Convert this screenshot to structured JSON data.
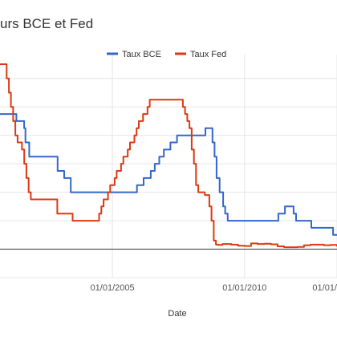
{
  "chart_data": {
    "type": "line",
    "title": "urs BCE et Fed",
    "xlabel": "Date",
    "ylabel": "",
    "x_ticks": [
      "01/01/2005",
      "01/01/2010",
      "01/01/"
    ],
    "xlim": [
      "2000-10-01",
      "2013-07-01"
    ],
    "ylim": [
      -1.0,
      6.5
    ],
    "grid": true,
    "legend_position": "top-right",
    "series": [
      {
        "name": "Taux BCE",
        "color": "#3366cc",
        "points": [
          [
            "2000-10-01",
            4.75
          ],
          [
            "2001-01-01",
            4.75
          ],
          [
            "2001-05-01",
            4.75
          ],
          [
            "2001-05-15",
            4.5
          ],
          [
            "2001-08-31",
            4.25
          ],
          [
            "2001-09-17",
            3.75
          ],
          [
            "2001-11-09",
            3.25
          ],
          [
            "2002-12-06",
            2.75
          ],
          [
            "2003-03-07",
            2.5
          ],
          [
            "2003-06-06",
            2.0
          ],
          [
            "2005-12-06",
            2.25
          ],
          [
            "2006-03-08",
            2.5
          ],
          [
            "2006-06-15",
            2.75
          ],
          [
            "2006-08-09",
            3.0
          ],
          [
            "2006-10-11",
            3.25
          ],
          [
            "2006-12-13",
            3.5
          ],
          [
            "2007-03-14",
            3.75
          ],
          [
            "2007-06-13",
            4.0
          ],
          [
            "2008-07-09",
            4.25
          ],
          [
            "2008-10-15",
            3.75
          ],
          [
            "2008-11-12",
            3.25
          ],
          [
            "2008-12-10",
            2.5
          ],
          [
            "2009-01-21",
            2.0
          ],
          [
            "2009-03-11",
            1.5
          ],
          [
            "2009-04-08",
            1.25
          ],
          [
            "2009-05-13",
            1.0
          ],
          [
            "2011-04-13",
            1.25
          ],
          [
            "2011-07-13",
            1.5
          ],
          [
            "2011-11-09",
            1.25
          ],
          [
            "2011-12-14",
            1.0
          ],
          [
            "2012-07-11",
            0.75
          ],
          [
            "2013-05-08",
            0.5
          ],
          [
            "2013-07-01",
            0.5
          ]
        ]
      },
      {
        "name": "Taux Fed",
        "color": "#dc3912",
        "points": [
          [
            "2000-10-01",
            6.5
          ],
          [
            "2001-01-01",
            6.0
          ],
          [
            "2001-02-01",
            5.5
          ],
          [
            "2001-03-01",
            5.0
          ],
          [
            "2001-04-01",
            4.5
          ],
          [
            "2001-05-01",
            4.0
          ],
          [
            "2001-06-01",
            3.75
          ],
          [
            "2001-08-01",
            3.5
          ],
          [
            "2001-09-01",
            3.0
          ],
          [
            "2001-10-01",
            2.5
          ],
          [
            "2001-11-01",
            2.0
          ],
          [
            "2001-12-01",
            1.75
          ],
          [
            "2002-11-01",
            1.75
          ],
          [
            "2002-12-01",
            1.25
          ],
          [
            "2003-06-01",
            1.25
          ],
          [
            "2003-07-01",
            1.0
          ],
          [
            "2004-06-01",
            1.0
          ],
          [
            "2004-07-01",
            1.25
          ],
          [
            "2004-08-01",
            1.5
          ],
          [
            "2004-09-01",
            1.75
          ],
          [
            "2004-11-01",
            2.0
          ],
          [
            "2004-12-01",
            2.25
          ],
          [
            "2005-02-01",
            2.5
          ],
          [
            "2005-03-01",
            2.75
          ],
          [
            "2005-05-01",
            3.0
          ],
          [
            "2005-06-01",
            3.25
          ],
          [
            "2005-08-01",
            3.5
          ],
          [
            "2005-09-01",
            3.75
          ],
          [
            "2005-11-01",
            4.0
          ],
          [
            "2005-12-01",
            4.25
          ],
          [
            "2006-01-01",
            4.5
          ],
          [
            "2006-03-01",
            4.75
          ],
          [
            "2006-05-01",
            5.0
          ],
          [
            "2006-06-01",
            5.25
          ],
          [
            "2007-08-01",
            5.25
          ],
          [
            "2007-09-01",
            5.0
          ],
          [
            "2007-10-01",
            4.75
          ],
          [
            "2007-11-01",
            4.5
          ],
          [
            "2007-12-01",
            4.25
          ],
          [
            "2008-01-01",
            3.5
          ],
          [
            "2008-02-01",
            3.0
          ],
          [
            "2008-03-01",
            2.25
          ],
          [
            "2008-04-01",
            2.0
          ],
          [
            "2008-07-01",
            1.9
          ],
          [
            "2008-09-01",
            1.5
          ],
          [
            "2008-10-01",
            1.0
          ],
          [
            "2008-11-01",
            0.3
          ],
          [
            "2008-12-01",
            0.16
          ],
          [
            "2009-01-01",
            0.15
          ],
          [
            "2009-03-01",
            0.18
          ],
          [
            "2009-05-01",
            0.18
          ],
          [
            "2009-07-01",
            0.16
          ],
          [
            "2009-10-01",
            0.12
          ],
          [
            "2010-01-01",
            0.11
          ],
          [
            "2010-04-01",
            0.2
          ],
          [
            "2010-07-01",
            0.18
          ],
          [
            "2010-10-01",
            0.19
          ],
          [
            "2011-01-01",
            0.17
          ],
          [
            "2011-04-01",
            0.1
          ],
          [
            "2011-07-01",
            0.07
          ],
          [
            "2011-10-01",
            0.07
          ],
          [
            "2012-01-01",
            0.08
          ],
          [
            "2012-04-01",
            0.14
          ],
          [
            "2012-07-01",
            0.16
          ],
          [
            "2012-10-01",
            0.16
          ],
          [
            "2013-01-01",
            0.14
          ],
          [
            "2013-04-01",
            0.15
          ],
          [
            "2013-07-01",
            0.09
          ]
        ]
      }
    ]
  }
}
